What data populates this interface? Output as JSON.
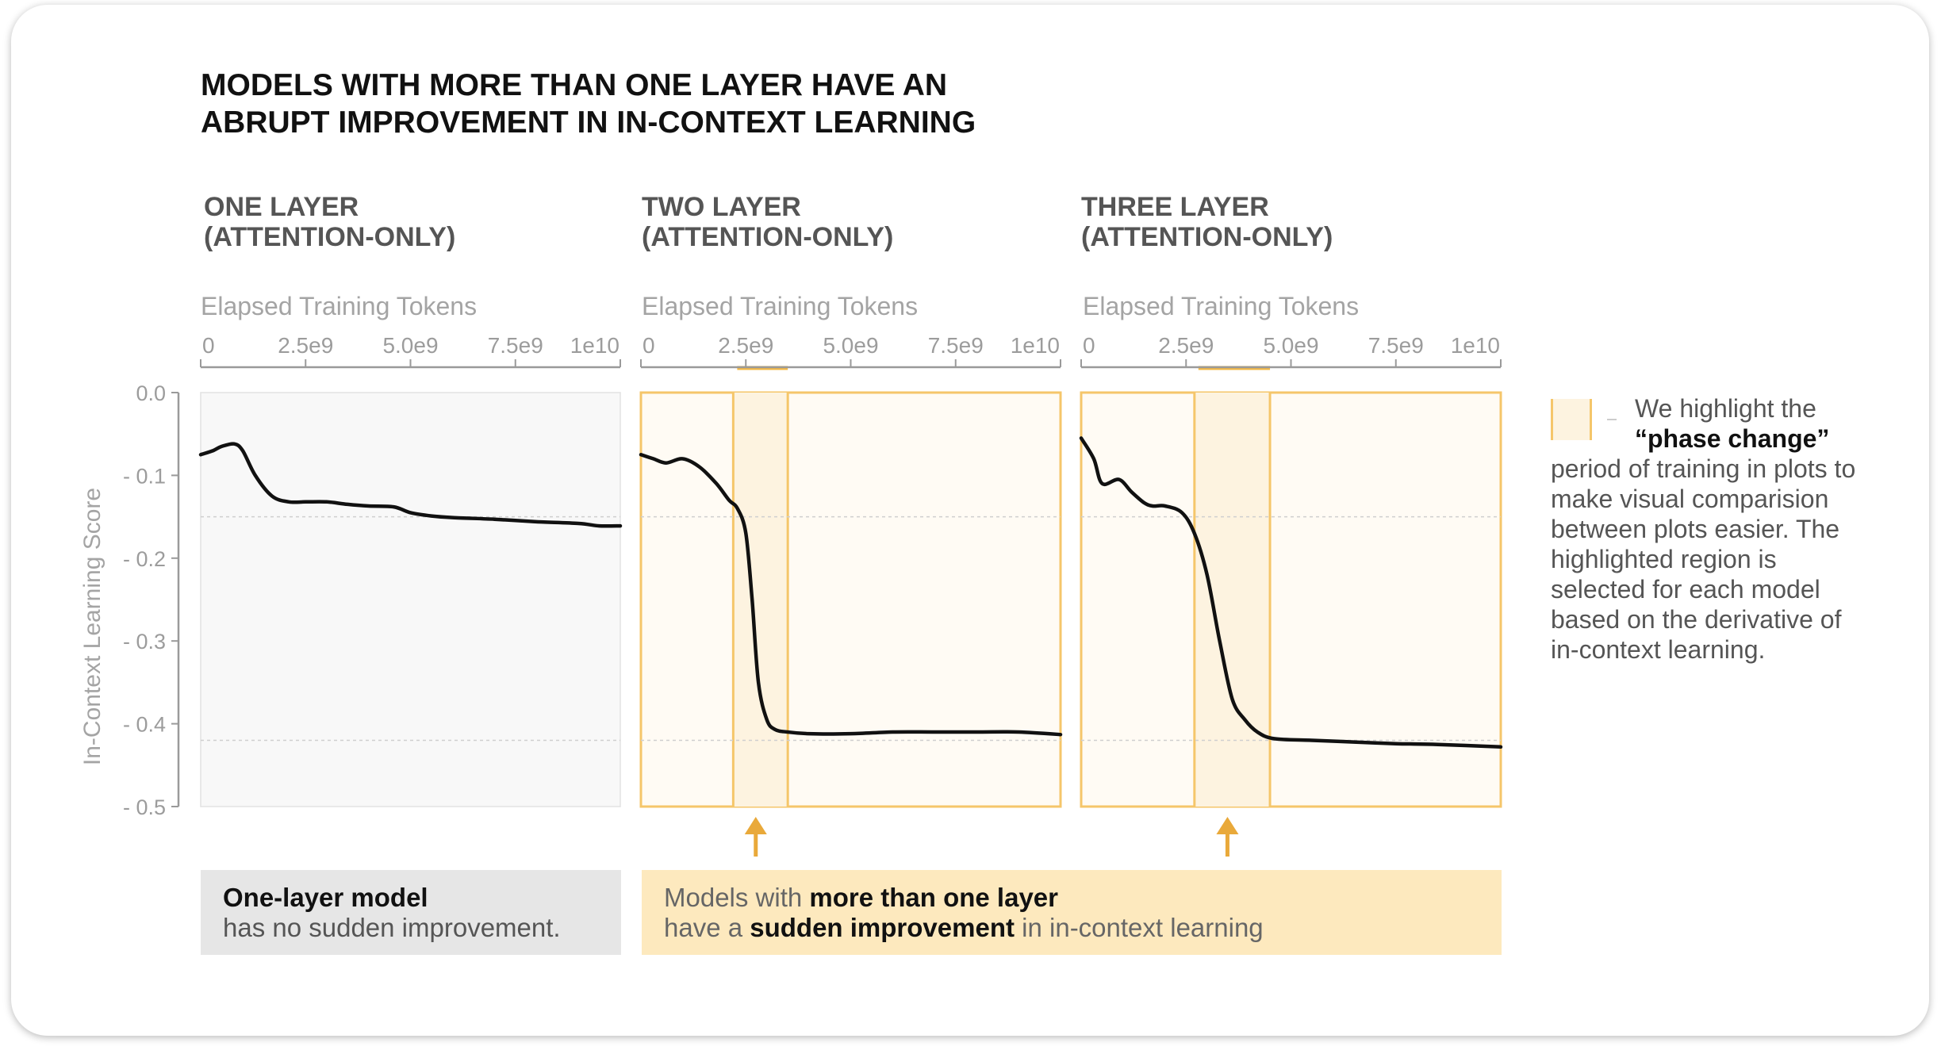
{
  "title_lines": [
    "MODELS WITH MORE THAN ONE LAYER HAVE AN",
    "ABRUPT IMPROVEMENT IN IN-CONTEXT LEARNING"
  ],
  "panels": [
    {
      "title_lines": [
        "ONE LAYER",
        "(ATTENTION-ONLY)"
      ],
      "xlabel": "Elapsed Training Tokens"
    },
    {
      "title_lines": [
        "TWO LAYER",
        "(ATTENTION-ONLY)"
      ],
      "xlabel": "Elapsed Training Tokens"
    },
    {
      "title_lines": [
        "THREE LAYER",
        "(ATTENTION-ONLY)"
      ],
      "xlabel": "Elapsed Training Tokens"
    }
  ],
  "ylabel": "In-Context Learning Score",
  "legend": {
    "line1": "We highlight the",
    "line2": "“phase change”",
    "rest": [
      "period of training in plots to",
      "make visual comparision",
      "between plots easier. The",
      "highlighted region is",
      "selected for each model",
      "based on the derivative of",
      "in-context learning."
    ]
  },
  "captions": {
    "one_layer": {
      "bold": "One-layer model",
      "text": "has no sudden improvement."
    },
    "multi_layer": {
      "l1_a": "Models with ",
      "l1_b": "more than one layer",
      "l2_a": "have a ",
      "l2_b": "sudden improvement",
      "l2_c": " in in-context learning"
    }
  },
  "colors": {
    "line": "#111111",
    "highlight_fill": "#fdf3e0",
    "highlight_border": "#f5c66a",
    "arrow": "#e9a93a",
    "axis": "#9a9a9a",
    "panel_bg_plain": "#f8f8f8",
    "panel_bg_highlight": "#fffbf4"
  },
  "chart_data": {
    "type": "line",
    "x_tick_labels": [
      "0",
      "2.5e9",
      "5.0e9",
      "7.5e9",
      "1e10"
    ],
    "x_ticks": [
      0,
      2500000000,
      5000000000,
      7500000000,
      10000000000
    ],
    "xlim": [
      0,
      10000000000
    ],
    "y_tick_labels": [
      "0.0",
      "- 0.1",
      "- 0.2",
      "- 0.3",
      "- 0.4",
      "- 0.5"
    ],
    "y_ticks": [
      0,
      -0.1,
      -0.2,
      -0.3,
      -0.4,
      -0.5
    ],
    "ylim": [
      -0.5,
      0
    ],
    "reference_lines_y": [
      -0.15,
      -0.42
    ],
    "series": [
      {
        "panel": 0,
        "x": [
          0,
          300000000,
          500000000,
          800000000,
          1000000000,
          1300000000,
          1700000000,
          2100000000,
          2500000000,
          3000000000,
          3500000000,
          4000000000,
          4600000000,
          5000000000,
          5500000000,
          6000000000,
          7000000000,
          8000000000,
          9000000000,
          9500000000,
          10000000000
        ],
        "y": [
          -0.075,
          -0.07,
          -0.065,
          -0.062,
          -0.07,
          -0.1,
          -0.125,
          -0.132,
          -0.132,
          -0.132,
          -0.135,
          -0.137,
          -0.138,
          -0.145,
          -0.149,
          -0.151,
          -0.153,
          -0.156,
          -0.158,
          -0.161,
          -0.161
        ]
      },
      {
        "panel": 1,
        "x": [
          0,
          300000000,
          600000000,
          1000000000,
          1400000000,
          1800000000,
          2100000000,
          2300000000,
          2500000000,
          2650000000,
          2800000000,
          3000000000,
          3200000000,
          3500000000,
          4000000000,
          5000000000,
          6000000000,
          7000000000,
          8000000000,
          9000000000,
          10000000000
        ],
        "y": [
          -0.075,
          -0.08,
          -0.085,
          -0.08,
          -0.09,
          -0.11,
          -0.13,
          -0.14,
          -0.17,
          -0.25,
          -0.35,
          -0.395,
          -0.407,
          -0.41,
          -0.412,
          -0.412,
          -0.41,
          -0.41,
          -0.41,
          -0.41,
          -0.413
        ]
      },
      {
        "panel": 2,
        "x": [
          0,
          300000000,
          500000000,
          900000000,
          1200000000,
          1500000000,
          1700000000,
          2000000000,
          2400000000,
          2700000000,
          3000000000,
          3300000000,
          3600000000,
          3900000000,
          4200000000,
          4600000000,
          5500000000,
          6500000000,
          7500000000,
          8500000000,
          10000000000
        ],
        "y": [
          -0.055,
          -0.08,
          -0.11,
          -0.105,
          -0.12,
          -0.133,
          -0.137,
          -0.137,
          -0.145,
          -0.17,
          -0.22,
          -0.3,
          -0.37,
          -0.395,
          -0.41,
          -0.418,
          -0.42,
          -0.422,
          -0.424,
          -0.425,
          -0.428
        ]
      }
    ],
    "highlight_regions": [
      null,
      {
        "x0": 2200000000,
        "x1": 3500000000
      },
      {
        "x0": 2700000000,
        "x1": 4500000000
      }
    ]
  }
}
